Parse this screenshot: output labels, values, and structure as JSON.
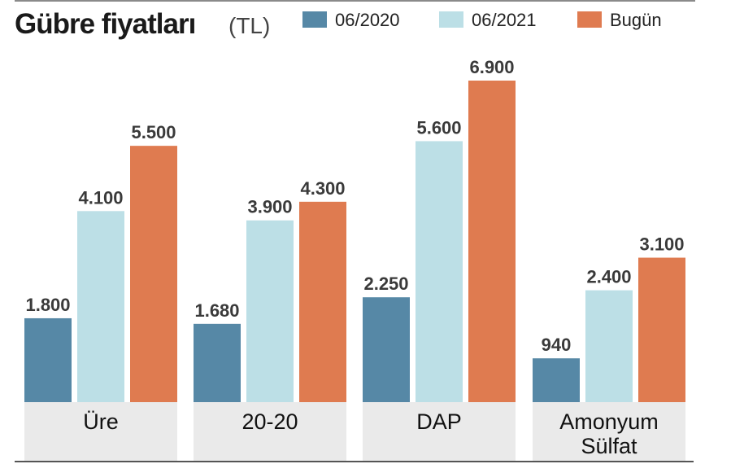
{
  "header": {
    "title": "Gübre fiyatları",
    "unit": "(TL)"
  },
  "colors": {
    "series_2020": "#5688a6",
    "series_2021": "#bcdfe6",
    "series_today": "#df7b50"
  },
  "chart_data": {
    "type": "bar",
    "title": "Gübre fiyatları (TL)",
    "categories": [
      "Üre",
      "20-20",
      "DAP",
      "Amonyum Sülfat"
    ],
    "series": [
      {
        "name": "06/2020",
        "values": [
          1800,
          1680,
          2250,
          940
        ],
        "value_labels": [
          "1.800",
          "1.680",
          "2.250",
          "940"
        ]
      },
      {
        "name": "06/2021",
        "values": [
          4100,
          3900,
          5600,
          2400
        ],
        "value_labels": [
          "4.100",
          "3.900",
          "5.600",
          "2.400"
        ]
      },
      {
        "name": "Bugün",
        "values": [
          5500,
          4300,
          6900,
          3100
        ],
        "value_labels": [
          "5.500",
          "4.300",
          "6.900",
          "3.100"
        ]
      }
    ],
    "ylim": [
      0,
      6900
    ],
    "legend": "top-right",
    "grid": false,
    "xlabel": "",
    "ylabel": ""
  }
}
